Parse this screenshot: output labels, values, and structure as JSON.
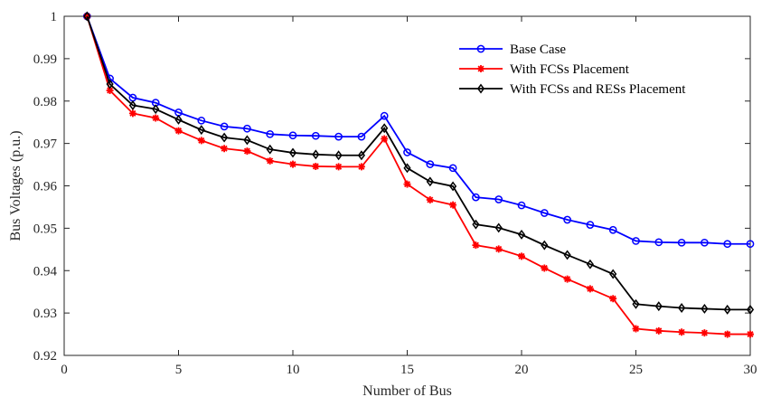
{
  "chart_data": {
    "type": "line",
    "title": "",
    "xlabel": "Number of Bus",
    "ylabel": "Bus Voltages (p.u.)",
    "xlim": [
      0,
      30
    ],
    "ylim": [
      0.92,
      1.0
    ],
    "xticks": [
      0,
      5,
      10,
      15,
      20,
      25,
      30
    ],
    "xtick_labels": [
      "0",
      "5",
      "10",
      "15",
      "20",
      "25",
      "30"
    ],
    "yticks": [
      0.92,
      0.93,
      0.94,
      0.95,
      0.96,
      0.97,
      0.98,
      0.99,
      1.0
    ],
    "ytick_labels": [
      "0.92",
      "0.93",
      "0.94",
      "0.95",
      "0.96",
      "0.97",
      "0.98",
      "0.99",
      "1"
    ],
    "grid": false,
    "legend_position": "top-right",
    "x": [
      1,
      2,
      3,
      4,
      5,
      6,
      7,
      8,
      9,
      10,
      11,
      12,
      13,
      14,
      15,
      16,
      17,
      18,
      19,
      20,
      21,
      22,
      23,
      24,
      25,
      26,
      27,
      28,
      29,
      30
    ],
    "series": [
      {
        "name": "Base Case",
        "color": "#0000ff",
        "marker": "circle",
        "values": [
          1.0,
          0.9853,
          0.9808,
          0.9796,
          0.9773,
          0.9754,
          0.974,
          0.9735,
          0.9722,
          0.9719,
          0.9718,
          0.9716,
          0.9716,
          0.9765,
          0.9679,
          0.9651,
          0.9642,
          0.9573,
          0.9568,
          0.9554,
          0.9536,
          0.952,
          0.9508,
          0.9496,
          0.947,
          0.9467,
          0.9466,
          0.9466,
          0.9463,
          0.9463
        ]
      },
      {
        "name": "With FCSs Placement",
        "color": "#ff0000",
        "marker": "star",
        "values": [
          1.0,
          0.9825,
          0.9771,
          0.976,
          0.973,
          0.9707,
          0.9688,
          0.9682,
          0.9659,
          0.9651,
          0.9646,
          0.9645,
          0.9645,
          0.9711,
          0.9604,
          0.9567,
          0.9555,
          0.946,
          0.9451,
          0.9434,
          0.9406,
          0.938,
          0.9357,
          0.9334,
          0.9263,
          0.9258,
          0.9255,
          0.9253,
          0.925,
          0.925
        ]
      },
      {
        "name": "With FCSs and RESs Placement",
        "color": "#000000",
        "marker": "diamond",
        "values": [
          1.0,
          0.984,
          0.979,
          0.9781,
          0.9756,
          0.9732,
          0.9714,
          0.9708,
          0.9686,
          0.9678,
          0.9674,
          0.9672,
          0.9672,
          0.9736,
          0.9642,
          0.961,
          0.9599,
          0.9509,
          0.9501,
          0.9485,
          0.946,
          0.9437,
          0.9415,
          0.9392,
          0.9321,
          0.9316,
          0.9312,
          0.931,
          0.9308,
          0.9308
        ]
      }
    ]
  }
}
